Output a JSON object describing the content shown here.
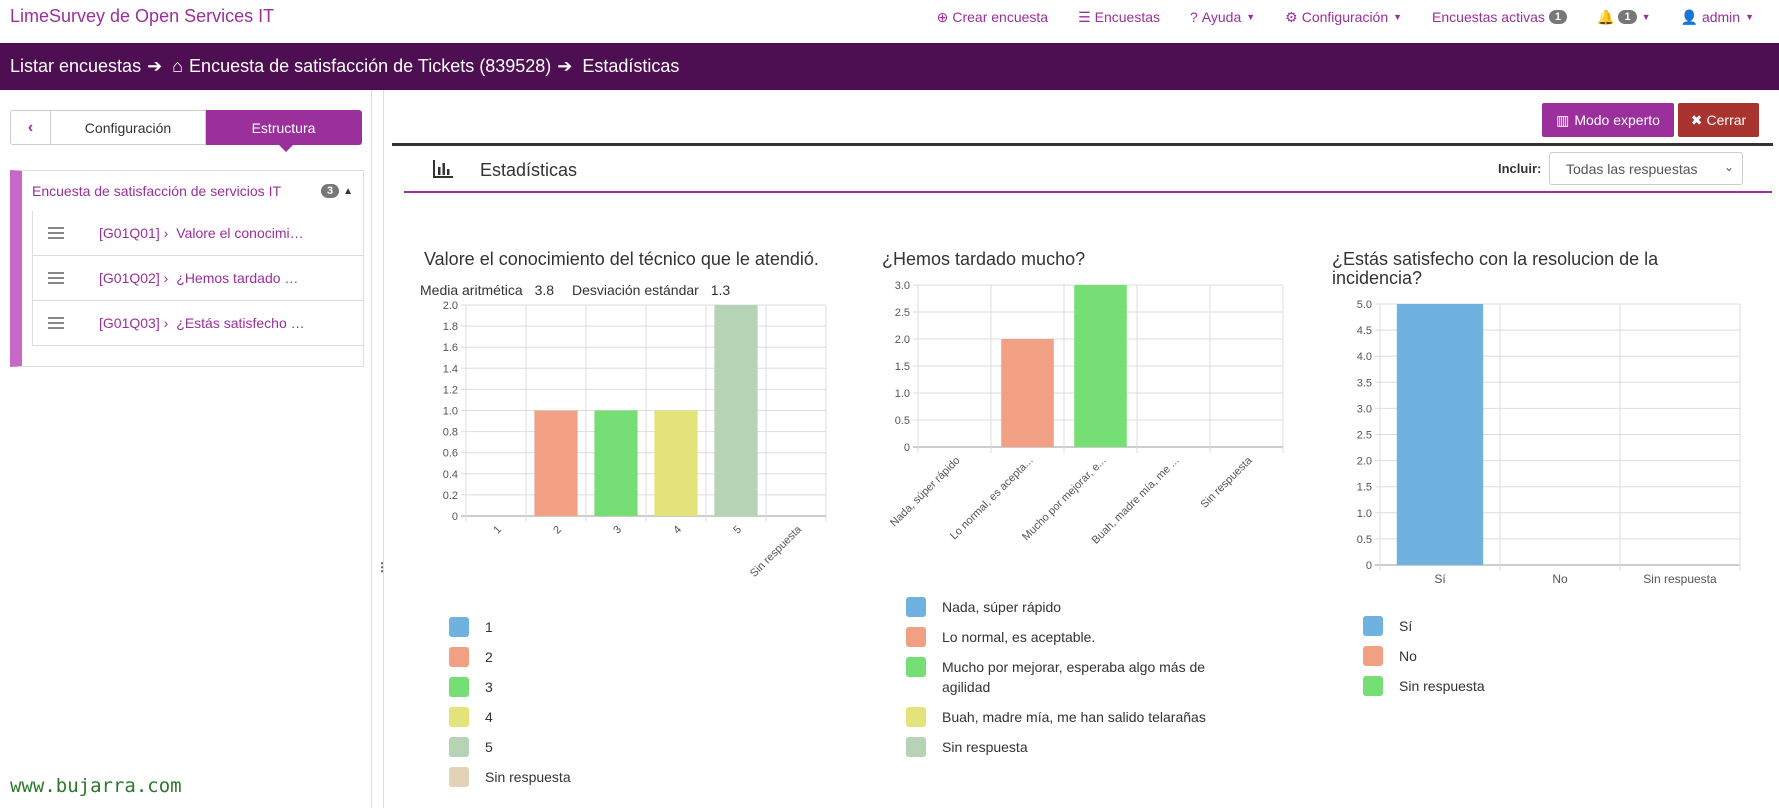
{
  "topbar": {
    "brand": "LimeSurvey de Open Services IT",
    "nav": [
      {
        "label": "Crear encuesta",
        "icon": "plus-circle-icon"
      },
      {
        "label": "Encuestas",
        "icon": "list-icon"
      },
      {
        "label": "Ayuda",
        "icon": "question-circle-icon"
      },
      {
        "label": "Configuración",
        "icon": "cogs-icon"
      },
      {
        "label": "Encuestas activas",
        "badge": "1"
      },
      {
        "label": "",
        "badge": "1",
        "icon": "bell-icon"
      },
      {
        "label": "admin",
        "icon": "user-icon"
      }
    ]
  },
  "breadcrumb": {
    "item1": "Listar encuestas",
    "item2": "Encuesta de satisfacción de Tickets (839528)",
    "item3": "Estadísticas"
  },
  "sidebar": {
    "tab_config": "Configuración",
    "tab_structure": "Estructura",
    "group_title": "Encuesta de satisfacción de servicios IT",
    "group_count": "3",
    "questions": [
      {
        "code": "[G01Q01] ›",
        "text": "Valore el conocimi…"
      },
      {
        "code": "[G01Q02] ›",
        "text": "¿Hemos tardado …"
      },
      {
        "code": "[G01Q03] ›",
        "text": "¿Estás satisfecho …"
      }
    ]
  },
  "toolbar": {
    "expert_label": "Modo experto",
    "close_label": "Cerrar"
  },
  "stats_header": {
    "title": "Estadísticas",
    "include_label": "Incluir:",
    "include_value": "Todas las respuestas"
  },
  "colors": {
    "brand": "#9b2f9c",
    "breadcrumb_bg": "#4e0f52",
    "close_btn": "#a8332f",
    "palette": [
      "#6fb1df",
      "#f2a083",
      "#75df75",
      "#e3e37a",
      "#b6d3b6",
      "#e3d2b6"
    ]
  },
  "chart_data": [
    {
      "type": "bar",
      "title": "Valore el conocimiento del técnico que le atendió.",
      "stats": {
        "mean_label": "Media aritmética",
        "mean": "3.8",
        "sd_label": "Desviación estándar",
        "sd": "1.3"
      },
      "categories": [
        "1",
        "2",
        "3",
        "4",
        "5",
        "Sin respuesta"
      ],
      "values": [
        0,
        1,
        1,
        1,
        2,
        0
      ],
      "ylim": [
        0,
        2
      ],
      "yticks": [
        "0",
        "0.2",
        "0.4",
        "0.6",
        "0.8",
        "1.0",
        "1.2",
        "1.4",
        "1.6",
        "1.8",
        "2.0"
      ],
      "grid": true,
      "legend": [
        "1",
        "2",
        "3",
        "4",
        "5",
        "Sin respuesta"
      ]
    },
    {
      "type": "bar",
      "title": "¿Hemos tardado mucho?",
      "categories": [
        "Nada, súper rápido",
        "Lo normal, es acepta...",
        "Mucho por mejorar, e...",
        "Buah, madre mía, me ...",
        "Sin respuesta"
      ],
      "values": [
        0,
        2,
        3,
        0,
        0
      ],
      "ylim": [
        0,
        3
      ],
      "yticks": [
        "0",
        "0.5",
        "1.0",
        "1.5",
        "2.0",
        "2.5",
        "3.0"
      ],
      "grid": true,
      "legend": [
        "Nada, súper rápido",
        "Lo normal, es aceptable.",
        "Mucho por mejorar, esperaba algo más de agilidad",
        "Buah, madre mía, me han salido telarañas",
        "Sin respuesta"
      ]
    },
    {
      "type": "bar",
      "title": "¿Estás satisfecho con la resolucion de la incidencia?",
      "categories": [
        "Sí",
        "No",
        "Sin respuesta"
      ],
      "values": [
        5,
        0,
        0
      ],
      "ylim": [
        0,
        5
      ],
      "yticks": [
        "0",
        "0.5",
        "1.0",
        "1.5",
        "2.0",
        "2.5",
        "3.0",
        "3.5",
        "4.0",
        "4.5",
        "5.0"
      ],
      "grid": true,
      "legend": [
        "Sí",
        "No",
        "Sin respuesta"
      ]
    }
  ],
  "watermark": "www.bujarra.com"
}
